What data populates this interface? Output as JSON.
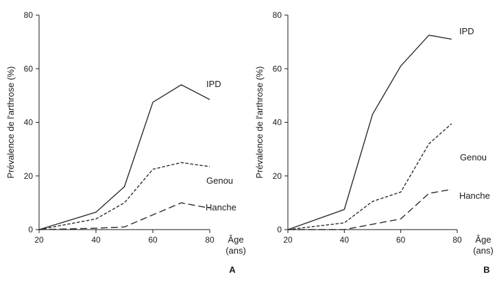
{
  "chart_data": [
    {
      "type": "line",
      "panel": "A",
      "ylabel": "Prévalence de l'arthrose (%)",
      "xlabel": [
        "Âge",
        "(ans)"
      ],
      "xlim": [
        20,
        80
      ],
      "ylim": [
        0,
        80
      ],
      "x_ticks": [
        20,
        40,
        60,
        80
      ],
      "y_ticks": [
        0,
        20,
        40,
        60,
        80
      ],
      "grid": false,
      "series": [
        {
          "name": "IPD",
          "style": "solid",
          "x": [
            20,
            40,
            50,
            60,
            70,
            80
          ],
          "y": [
            0,
            6.5,
            16,
            47.5,
            54,
            48.5
          ]
        },
        {
          "name": "Genou",
          "style": "short-dash",
          "x": [
            20,
            40,
            50,
            60,
            70,
            80
          ],
          "y": [
            0,
            4,
            10,
            22.5,
            25,
            23.5
          ]
        },
        {
          "name": "Hanche",
          "style": "long-dash",
          "x": [
            20,
            40,
            50,
            60,
            70,
            80
          ],
          "y": [
            0,
            0.5,
            1,
            5.5,
            10,
            8
          ]
        }
      ]
    },
    {
      "type": "line",
      "panel": "B",
      "ylabel": "Prévalence de l'arthrose (%)",
      "xlabel": [
        "Âge",
        "(ans)"
      ],
      "xlim": [
        20,
        80
      ],
      "ylim": [
        0,
        80
      ],
      "x_ticks": [
        20,
        40,
        60,
        80
      ],
      "y_ticks": [
        0,
        20,
        40,
        60,
        80
      ],
      "grid": false,
      "series": [
        {
          "name": "IPD",
          "style": "solid",
          "x": [
            20,
            40,
            50,
            60,
            70,
            78
          ],
          "y": [
            0,
            7.5,
            43,
            61,
            72.5,
            71
          ]
        },
        {
          "name": "Genou",
          "style": "short-dash",
          "x": [
            20,
            40,
            50,
            60,
            70,
            78
          ],
          "y": [
            0,
            2.5,
            10.5,
            14,
            32,
            39.5
          ]
        },
        {
          "name": "Hanche",
          "style": "long-dash",
          "x": [
            20,
            40,
            50,
            60,
            70,
            78
          ],
          "y": [
            0,
            0,
            2,
            4,
            13.5,
            15
          ]
        }
      ]
    }
  ]
}
